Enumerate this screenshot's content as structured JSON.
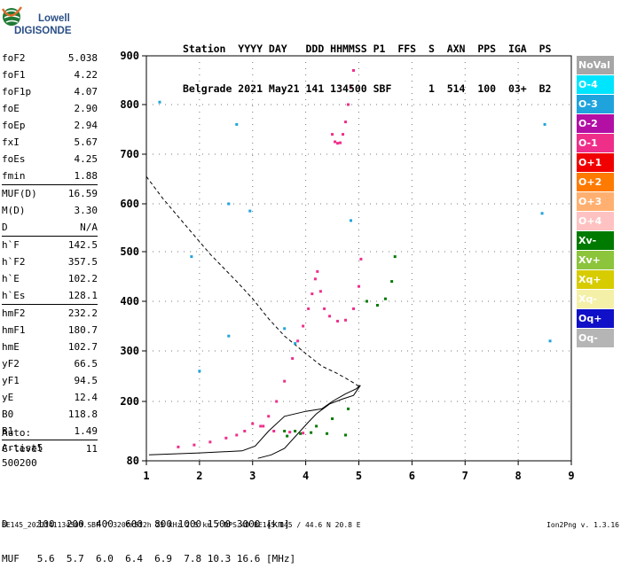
{
  "logo": {
    "line1": "Lowell",
    "line2": "DIGISONDE"
  },
  "header": {
    "line1": "Station  YYYY DAY   DDD HHMMSS P1  FFS  S  AXN  PPS  IGA  PS",
    "line2": "Belgrade 2021 May21 141 134500 SBF      1  514  100  03+  B2"
  },
  "params": [
    {
      "name": "foF2",
      "value": "5.038"
    },
    {
      "name": "foF1",
      "value": "4.22"
    },
    {
      "name": "foF1p",
      "value": "4.07"
    },
    {
      "name": "foE",
      "value": "2.90"
    },
    {
      "name": "foEp",
      "value": "2.94"
    },
    {
      "name": "fxI",
      "value": "5.67"
    },
    {
      "name": "foEs",
      "value": "4.25"
    },
    {
      "name": "fmin",
      "value": "1.88"
    },
    {
      "name": "MUF(D)",
      "value": "16.59"
    },
    {
      "name": "M(D)",
      "value": "3.30"
    },
    {
      "name": "D",
      "value": "N/A"
    },
    {
      "name": "h`F",
      "value": "142.5"
    },
    {
      "name": "h`F2",
      "value": "357.5"
    },
    {
      "name": "h`E",
      "value": "102.2"
    },
    {
      "name": "h`Es",
      "value": "128.1"
    },
    {
      "name": "hmF2",
      "value": "232.2"
    },
    {
      "name": "hmF1",
      "value": "180.7"
    },
    {
      "name": "hmE",
      "value": "102.7"
    },
    {
      "name": "yF2",
      "value": "66.5"
    },
    {
      "name": "yF1",
      "value": "94.5"
    },
    {
      "name": "yE",
      "value": "12.4"
    },
    {
      "name": "B0",
      "value": "118.8"
    },
    {
      "name": "B1",
      "value": "1.49"
    },
    {
      "name": "C-level",
      "value": "11"
    }
  ],
  "auto": {
    "line1": "Auto:",
    "line2": "Artist5",
    "line3": "500200"
  },
  "dmuf": {
    "d_line": "D     100  200  400  600  800 1000 1500 3000 [km]",
    "muf_line": "MUF   5.6  5.7  6.0  6.4  6.9  7.8 10.3 16.6 [MHz]"
  },
  "footer": {
    "left": "BE145_2021141134500.SBF / 320fx512h 25 kHz 2.5 km / DPS-4D BE145 145 / 44.6 N 20.8 E",
    "right": "Ion2Png v. 1.3.16"
  },
  "legend": [
    {
      "label": "NoVal",
      "color": "#a6a6a6"
    },
    {
      "label": "O-4",
      "color": "#00e5ff"
    },
    {
      "label": "O-3",
      "color": "#1fa3dd"
    },
    {
      "label": "O-2",
      "color": "#b30fa5"
    },
    {
      "label": "O-1",
      "color": "#ef2e8a"
    },
    {
      "label": "O+1",
      "color": "#f00000"
    },
    {
      "label": "O+2",
      "color": "#ff7a00"
    },
    {
      "label": "O+3",
      "color": "#ffb070"
    },
    {
      "label": "O+4",
      "color": "#ffc2c2"
    },
    {
      "label": "Xv-",
      "color": "#007a00"
    },
    {
      "label": "Xv+",
      "color": "#8cc43c"
    },
    {
      "label": "Xq+",
      "color": "#d7cc00"
    },
    {
      "label": "Xq-",
      "color": "#f5f0a8"
    },
    {
      "label": "Oq+",
      "color": "#1010c8"
    },
    {
      "label": "Oq-",
      "color": "#b5b5b5"
    }
  ],
  "chart_data": {
    "type": "scatter",
    "xlim": [
      1,
      9
    ],
    "ylim": [
      80,
      900
    ],
    "x_ticks": [
      1,
      2,
      3,
      4,
      5,
      6,
      7,
      8,
      9
    ],
    "y_ticks": [
      80,
      200,
      300,
      400,
      500,
      600,
      700,
      800,
      900
    ],
    "grid": "dotted",
    "series": [
      {
        "name": "O-1",
        "color": "#ef2e8a",
        "points": [
          [
            1.6,
            108
          ],
          [
            1.9,
            112
          ],
          [
            2.2,
            118
          ],
          [
            2.5,
            126
          ],
          [
            2.7,
            132
          ],
          [
            2.85,
            140
          ],
          [
            3.0,
            155
          ],
          [
            3.15,
            150
          ],
          [
            3.4,
            140
          ],
          [
            3.7,
            138
          ],
          [
            3.95,
            136
          ],
          [
            3.2,
            150
          ],
          [
            3.3,
            170
          ],
          [
            3.45,
            200
          ],
          [
            3.6,
            240
          ],
          [
            3.75,
            285
          ],
          [
            3.85,
            320
          ],
          [
            3.95,
            350
          ],
          [
            4.05,
            385
          ],
          [
            4.12,
            415
          ],
          [
            4.18,
            445
          ],
          [
            4.22,
            460
          ],
          [
            4.28,
            420
          ],
          [
            4.35,
            385
          ],
          [
            4.45,
            370
          ],
          [
            4.6,
            360
          ],
          [
            4.75,
            362
          ],
          [
            4.9,
            385
          ],
          [
            5.0,
            430
          ],
          [
            5.04,
            485
          ],
          [
            4.5,
            740
          ],
          [
            4.55,
            725
          ],
          [
            4.6,
            722
          ],
          [
            4.65,
            723
          ],
          [
            4.7,
            740
          ],
          [
            4.75,
            765
          ],
          [
            4.8,
            800
          ],
          [
            4.85,
            835
          ],
          [
            4.9,
            870
          ]
        ]
      },
      {
        "name": "Xv-",
        "color": "#007a00",
        "points": [
          [
            3.6,
            140
          ],
          [
            3.8,
            140
          ],
          [
            4.1,
            137
          ],
          [
            4.4,
            135
          ],
          [
            4.75,
            132
          ],
          [
            3.65,
            130
          ],
          [
            3.9,
            135
          ],
          [
            4.2,
            150
          ],
          [
            4.5,
            165
          ],
          [
            4.8,
            185
          ],
          [
            5.15,
            400
          ],
          [
            5.35,
            392
          ],
          [
            5.5,
            405
          ],
          [
            5.62,
            440
          ],
          [
            5.68,
            490
          ]
        ]
      },
      {
        "name": "O-3",
        "color": "#1fa3dd",
        "points": [
          [
            1.25,
            805
          ],
          [
            1.85,
            490
          ],
          [
            2.55,
            600
          ],
          [
            2.7,
            760
          ],
          [
            2.95,
            585
          ],
          [
            2.55,
            330
          ],
          [
            4.85,
            565
          ],
          [
            3.6,
            345
          ],
          [
            3.8,
            315
          ],
          [
            2.0,
            260
          ],
          [
            8.5,
            760
          ],
          [
            8.6,
            320
          ],
          [
            8.45,
            580
          ]
        ]
      }
    ],
    "curves": [
      {
        "style": "dashed",
        "points": [
          [
            1.0,
            655
          ],
          [
            1.3,
            612
          ],
          [
            1.7,
            560
          ],
          [
            2.2,
            495
          ],
          [
            2.7,
            440
          ],
          [
            3.0,
            405
          ],
          [
            3.3,
            365
          ],
          [
            3.6,
            330
          ],
          [
            4.0,
            295
          ],
          [
            4.3,
            270
          ],
          [
            4.6,
            255
          ],
          [
            4.85,
            240
          ],
          [
            5.0,
            230
          ]
        ]
      },
      {
        "style": "solid",
        "points": [
          [
            1.05,
            92
          ],
          [
            2.0,
            96
          ],
          [
            2.8,
            100
          ],
          [
            3.05,
            110
          ],
          [
            3.3,
            140
          ],
          [
            3.6,
            170
          ],
          [
            4.0,
            180
          ],
          [
            4.3,
            185
          ],
          [
            4.5,
            200
          ],
          [
            4.75,
            215
          ],
          [
            4.95,
            225
          ],
          [
            5.03,
            232
          ],
          [
            4.9,
            212
          ],
          [
            4.7,
            205
          ],
          [
            4.45,
            195
          ],
          [
            4.2,
            175
          ],
          [
            4.05,
            158
          ],
          [
            3.6,
            105
          ],
          [
            3.35,
            92
          ],
          [
            3.1,
            85
          ]
        ]
      }
    ]
  }
}
